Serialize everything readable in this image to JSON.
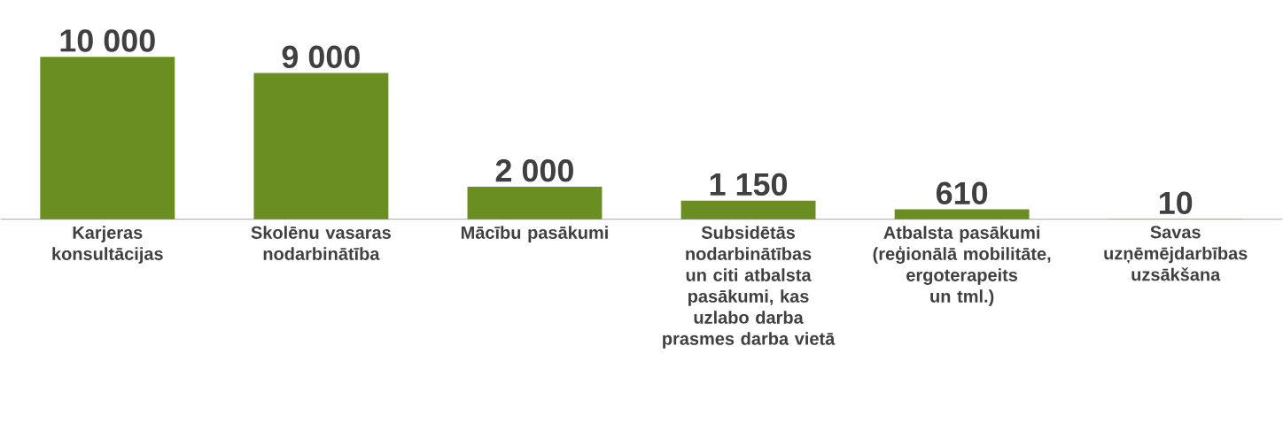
{
  "chart_data": {
    "type": "bar",
    "categories": [
      "Karjeras konsultācijas",
      "Skolēnu vasaras nodarbinātība",
      "Mācību pasākumi",
      "Subsidētās nodarbinātības un citi atbalsta pasākumi, kas uzlabo darba prasmes darba vietā",
      "Atbalsta pasākumi (reģionālā mobilitāte, ergoterapeits un tml.)",
      "Savas uzņēmējdarbības uzsākšana"
    ],
    "values": [
      10000,
      9000,
      2000,
      1150,
      610,
      10
    ],
    "value_labels": [
      "10 000",
      "9 000",
      "2 000",
      "1 150",
      "610",
      "10"
    ],
    "color": "#6b8e23"
  }
}
